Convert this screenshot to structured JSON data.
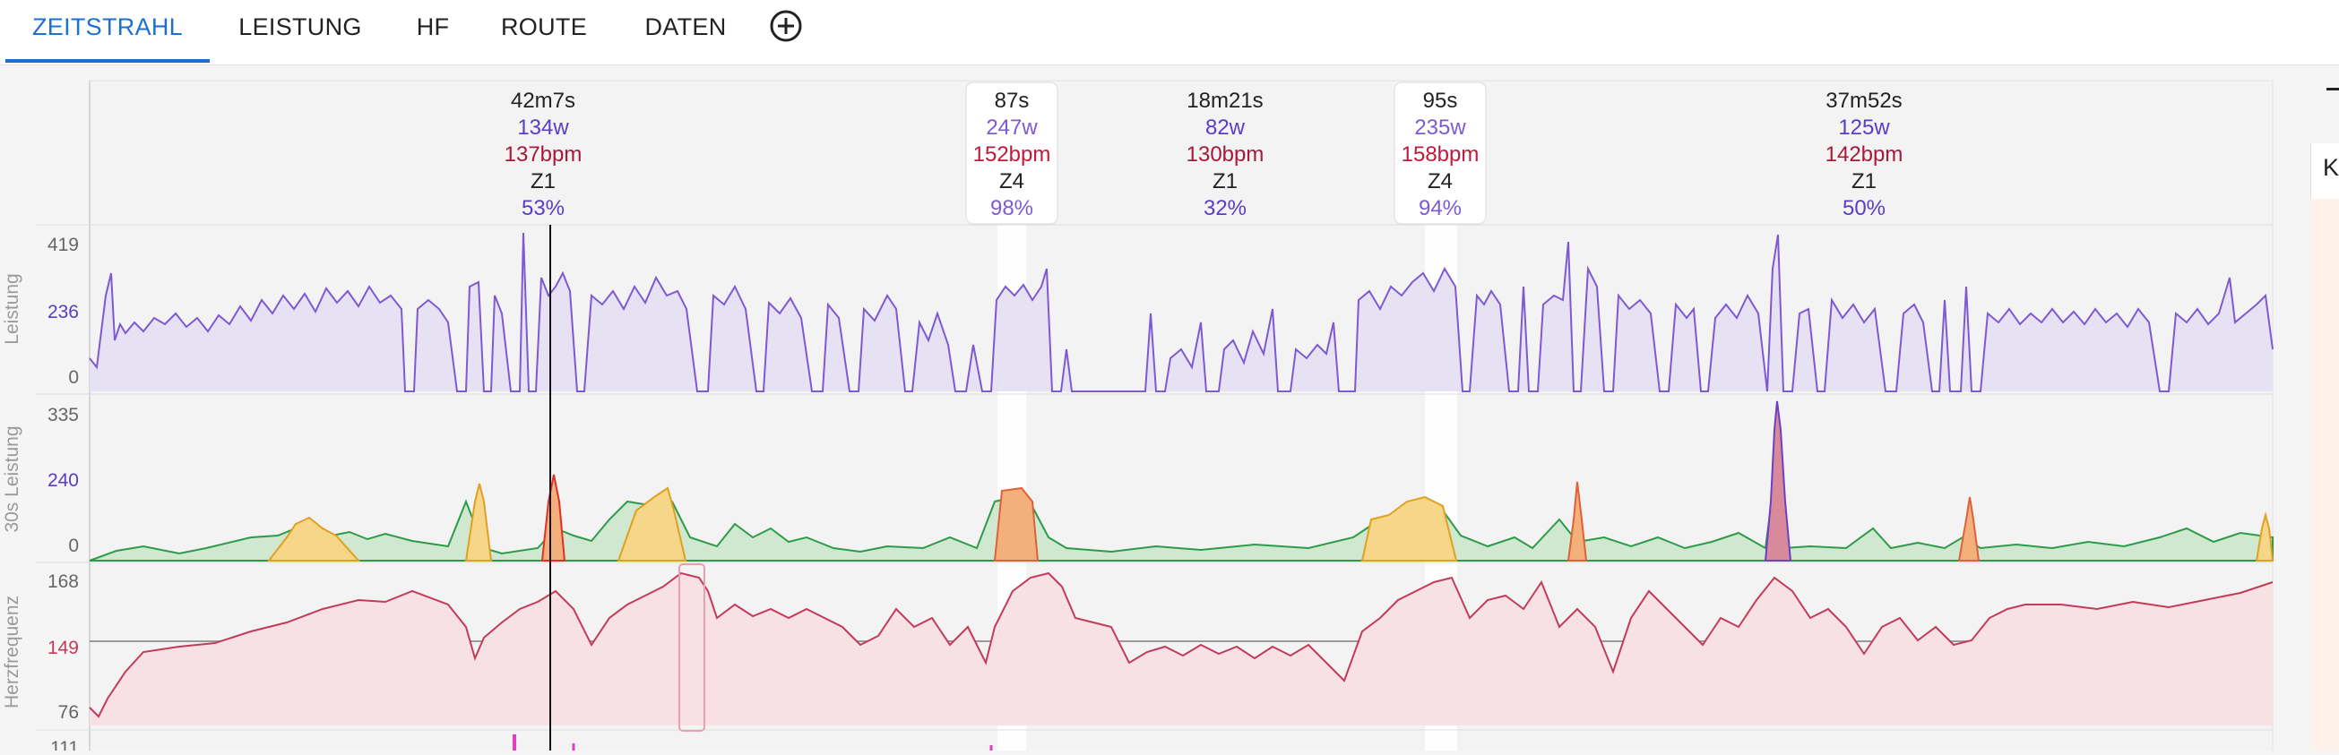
{
  "tabs": [
    {
      "label": "ZEITSTRAHL",
      "active": true
    },
    {
      "label": "LEISTUNG",
      "active": false
    },
    {
      "label": "HF",
      "active": false
    },
    {
      "label": "ROUTE",
      "active": false
    },
    {
      "label": "DATEN",
      "active": false
    }
  ],
  "add_icon": "plus-circle-icon",
  "right_panel_text": "Ke",
  "intervals": [
    {
      "duration": "42m7s",
      "power": "134w",
      "hr": "137bpm",
      "zone": "Z1",
      "percent": "53%",
      "highlighted": false
    },
    {
      "duration": "87s",
      "power": "247w",
      "hr": "152bpm",
      "zone": "Z4",
      "percent": "98%",
      "highlighted": true
    },
    {
      "duration": "18m21s",
      "power": "82w",
      "hr": "130bpm",
      "zone": "Z1",
      "percent": "32%",
      "highlighted": false
    },
    {
      "duration": "95s",
      "power": "235w",
      "hr": "158bpm",
      "zone": "Z4",
      "percent": "94%",
      "highlighted": true
    },
    {
      "duration": "37m52s",
      "power": "125w",
      "hr": "142bpm",
      "zone": "Z1",
      "percent": "50%",
      "highlighted": false
    }
  ],
  "panels": {
    "power": {
      "label": "Leistung",
      "ticks": [
        "419",
        "236",
        "0"
      ]
    },
    "power30": {
      "label": "30s Leistung",
      "ticks": [
        "335",
        "240",
        "0"
      ]
    },
    "hr": {
      "label": "Herzfrequenz",
      "ticks": [
        "168",
        "149",
        "76"
      ]
    },
    "bottom": {
      "ticks": [
        "111"
      ]
    }
  },
  "colors": {
    "accent": "#1f6fd1",
    "power": "#7e5ad2",
    "hr": "#c23b5a",
    "green": "#2e9b4a",
    "yellow": "#f2c744",
    "orange": "#f08a2c",
    "red": "#e0303a",
    "purple_peak": "#6b40c8"
  }
}
